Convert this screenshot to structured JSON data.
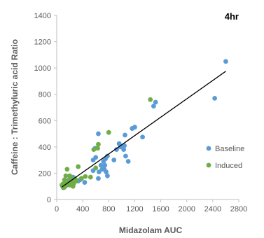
{
  "chart_data": {
    "type": "scatter",
    "title": "4hr",
    "xlabel": "Midazolam AUC",
    "ylabel": "Caffeine : Trimethyluric acid Ratio",
    "xlim": [
      0,
      2800
    ],
    "ylim": [
      0,
      1400
    ],
    "xticks": [
      "0",
      "400",
      "800",
      "1200",
      "1600",
      "2000",
      "2400",
      "2800"
    ],
    "yticks": [
      "0",
      "200",
      "400",
      "600",
      "800",
      "1000",
      "1200",
      "1400"
    ],
    "grid": false,
    "legend_position": "right",
    "trendline": {
      "x": [
        80,
        2600
      ],
      "y": [
        95,
        975
      ]
    },
    "series": [
      {
        "name": "Baseline",
        "color": "#5B9BD5",
        "points": [
          [
            2600,
            1050
          ],
          [
            2430,
            770
          ],
          [
            1520,
            740
          ],
          [
            1490,
            710
          ],
          [
            1320,
            475
          ],
          [
            1200,
            550
          ],
          [
            1160,
            540
          ],
          [
            1050,
            490
          ],
          [
            1040,
            410
          ],
          [
            980,
            400
          ],
          [
            960,
            425
          ],
          [
            920,
            380
          ],
          [
            880,
            300
          ],
          [
            1100,
            290
          ],
          [
            1060,
            330
          ],
          [
            1030,
            380
          ],
          [
            780,
            330
          ],
          [
            750,
            310
          ],
          [
            740,
            260
          ],
          [
            720,
            290
          ],
          [
            700,
            230
          ],
          [
            680,
            260
          ],
          [
            640,
            500
          ],
          [
            600,
            320
          ],
          [
            590,
            390
          ],
          [
            560,
            300
          ],
          [
            760,
            210
          ],
          [
            780,
            180
          ],
          [
            730,
            230
          ],
          [
            650,
            210
          ],
          [
            640,
            160
          ],
          [
            560,
            220
          ],
          [
            430,
            130
          ],
          [
            380,
            160
          ],
          [
            360,
            150
          ],
          [
            330,
            140
          ],
          [
            290,
            150
          ],
          [
            260,
            130
          ],
          [
            250,
            170
          ],
          [
            210,
            120
          ],
          [
            190,
            150
          ],
          [
            160,
            110
          ],
          [
            140,
            130
          ],
          [
            120,
            100
          ],
          [
            100,
            90
          ]
        ]
      },
      {
        "name": "Induced",
        "color": "#70AD47",
        "points": [
          [
            1440,
            760
          ],
          [
            800,
            510
          ],
          [
            640,
            420
          ],
          [
            630,
            390
          ],
          [
            570,
            380
          ],
          [
            600,
            240
          ],
          [
            520,
            170
          ],
          [
            440,
            175
          ],
          [
            380,
            160
          ],
          [
            330,
            250
          ],
          [
            300,
            140
          ],
          [
            280,
            160
          ],
          [
            260,
            120
          ],
          [
            240,
            150
          ],
          [
            220,
            130
          ],
          [
            200,
            110
          ],
          [
            180,
            140
          ],
          [
            160,
            230
          ],
          [
            150,
            120
          ],
          [
            140,
            180
          ],
          [
            130,
            100
          ],
          [
            120,
            150
          ],
          [
            110,
            90
          ],
          [
            100,
            120
          ],
          [
            90,
            100
          ],
          [
            80,
            110
          ],
          [
            250,
            100
          ],
          [
            200,
            180
          ]
        ]
      }
    ]
  }
}
